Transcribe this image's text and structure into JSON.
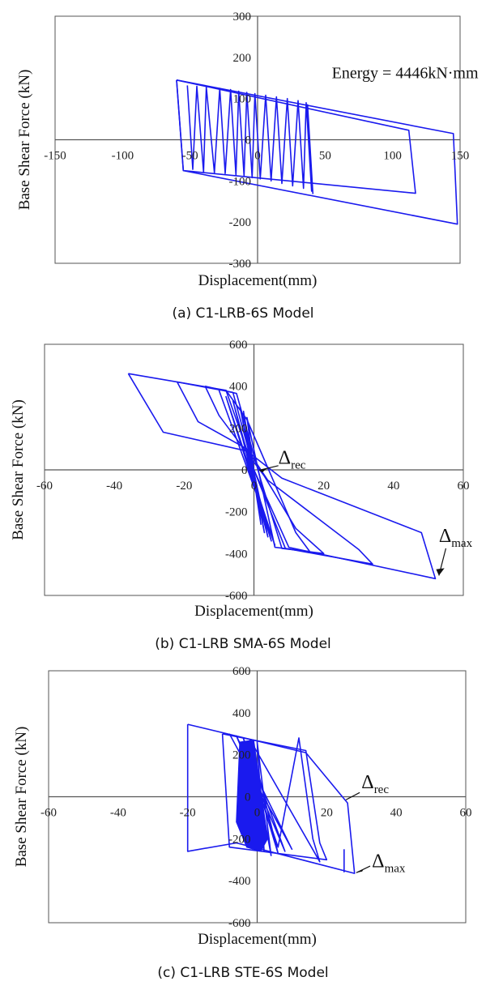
{
  "colors": {
    "series": "#1a1aee",
    "axes": "#555555"
  },
  "chart_data": [
    {
      "type": "line",
      "caption": "(a) C1-LRB-6S Model",
      "xlabel": "Displacement(mm)",
      "ylabel": "Base Shear Force (kN)",
      "xlim": [
        -150,
        150
      ],
      "ylim": [
        -300,
        300
      ],
      "xticks": [
        -150,
        -100,
        -50,
        0,
        50,
        100,
        150
      ],
      "yticks": [
        -300,
        -200,
        -100,
        0,
        100,
        200,
        300
      ],
      "annotations": [
        {
          "text": "Energy = 4446kN·mm",
          "x": 55,
          "y": 150
        }
      ],
      "series": [
        {
          "type": "loop",
          "points": [
            [
              -60,
              145
            ],
            [
              112,
              23
            ],
            [
              117,
              -130
            ],
            [
              -55,
              -75
            ],
            [
              -60,
              145
            ]
          ]
        },
        {
          "type": "loop",
          "points": [
            [
              -60,
              145
            ],
            [
              145,
              15
            ],
            [
              148,
              -205
            ],
            [
              -55,
              -75
            ],
            [
              -60,
              145
            ]
          ]
        },
        {
          "type": "cycles",
          "points": [
            [
              -52,
              132
            ],
            [
              -48,
              -72
            ],
            [
              -45,
              130
            ],
            [
              -40,
              -78
            ],
            [
              -38,
              128
            ],
            [
              -32,
              -80
            ],
            [
              -28,
              125
            ],
            [
              -24,
              -82
            ],
            [
              -20,
              122
            ],
            [
              -16,
              -86
            ],
            [
              -14,
              118
            ],
            [
              -10,
              -88
            ],
            [
              -8,
              115
            ],
            [
              -4,
              -92
            ],
            [
              -2,
              112
            ],
            [
              2,
              -95
            ],
            [
              6,
              108
            ],
            [
              10,
              -100
            ],
            [
              14,
              104
            ],
            [
              18,
              -106
            ],
            [
              22,
              100
            ],
            [
              26,
              -112
            ],
            [
              30,
              95
            ],
            [
              34,
              -118
            ],
            [
              36,
              90
            ],
            [
              40,
              -125
            ],
            [
              37,
              85
            ],
            [
              41,
              -132
            ]
          ]
        }
      ]
    },
    {
      "type": "line",
      "caption": "(b) C1-LRB SMA-6S Model",
      "xlabel": "Displacement(mm)",
      "ylabel": "Base Shear Force (kN)",
      "xlim": [
        -60,
        60
      ],
      "ylim": [
        -600,
        600
      ],
      "xticks": [
        -60,
        -40,
        -20,
        0,
        20,
        40,
        60
      ],
      "yticks": [
        -600,
        -400,
        -200,
        0,
        200,
        400,
        600
      ],
      "annotations": [
        {
          "text": "Δrec",
          "x": 7,
          "y": 30
        },
        {
          "text": "Δmax",
          "x": 53,
          "y": -345
        }
      ],
      "series": [
        {
          "type": "loop",
          "points": [
            [
              -36,
              460
            ],
            [
              -8,
              380
            ],
            [
              0,
              0
            ],
            [
              10,
              -370
            ],
            [
              52,
              -520
            ],
            [
              48,
              -300
            ],
            [
              8,
              -40
            ],
            [
              -2,
              90
            ],
            [
              -26,
              180
            ],
            [
              -36,
              460
            ]
          ]
        },
        {
          "type": "loop",
          "points": [
            [
              -22,
              420
            ],
            [
              -6,
              370
            ],
            [
              0,
              0
            ],
            [
              9,
              -375
            ],
            [
              34,
              -450
            ],
            [
              30,
              -380
            ],
            [
              4,
              -50
            ],
            [
              -2,
              100
            ],
            [
              -16,
              230
            ],
            [
              -22,
              420
            ]
          ]
        },
        {
          "type": "loop",
          "points": [
            [
              -14,
              400
            ],
            [
              -5,
              365
            ],
            [
              2,
              -50
            ],
            [
              8,
              -375
            ],
            [
              20,
              -400
            ],
            [
              12,
              -280
            ],
            [
              3,
              -30
            ],
            [
              -10,
              260
            ],
            [
              -14,
              400
            ]
          ]
        },
        {
          "type": "cycles",
          "points": [
            [
              -10,
              380
            ],
            [
              6,
              -360
            ],
            [
              -8,
              350
            ],
            [
              5,
              -340
            ],
            [
              -6,
              330
            ],
            [
              4,
              -320
            ],
            [
              -4,
              300
            ],
            [
              3,
              -300
            ],
            [
              -3,
              280
            ],
            [
              2,
              -260
            ],
            [
              -2,
              250
            ],
            [
              6,
              -370
            ],
            [
              16,
              -390
            ],
            [
              12,
              -300
            ],
            [
              -2,
              240
            ],
            [
              -8,
              380
            ]
          ]
        }
      ]
    },
    {
      "type": "line",
      "caption": "(c) C1-LRB STE-6S Model",
      "xlabel": "Displacement(mm)",
      "ylabel": "Base Shear Force (kN)",
      "xlim": [
        -60,
        60
      ],
      "ylim": [
        -600,
        600
      ],
      "xticks": [
        -60,
        -40,
        -20,
        0,
        20,
        40,
        60
      ],
      "yticks": [
        -600,
        -400,
        -200,
        0,
        200,
        400,
        600
      ],
      "annotations": [
        {
          "text": "Δrec",
          "x": 30,
          "y": 40
        },
        {
          "text": "Δmax",
          "x": 33,
          "y": -335
        }
      ],
      "series": [
        {
          "type": "loop",
          "points": [
            [
              -20,
              345
            ],
            [
              14,
              210
            ],
            [
              26,
              -30
            ],
            [
              28,
              -365
            ],
            [
              -6,
              -220
            ],
            [
              -20,
              -260
            ],
            [
              -20,
              345
            ]
          ]
        },
        {
          "type": "loop",
          "points": [
            [
              -10,
              300
            ],
            [
              14,
              220
            ],
            [
              18,
              -220
            ],
            [
              20,
              -300
            ],
            [
              -8,
              -240
            ],
            [
              -10,
              300
            ]
          ]
        },
        {
          "type": "cycles",
          "points": [
            [
              -8,
              300
            ],
            [
              10,
              -250
            ],
            [
              -6,
              290
            ],
            [
              8,
              -260
            ],
            [
              -4,
              280
            ],
            [
              6,
              -270
            ],
            [
              -2,
              270
            ],
            [
              4,
              -280
            ],
            [
              0,
              260
            ],
            [
              2,
              -260
            ],
            [
              -4,
              250
            ],
            [
              6,
              -240
            ],
            [
              12,
              280
            ],
            [
              16,
              -200
            ],
            [
              18,
              -310
            ],
            [
              -2,
              270
            ]
          ]
        },
        {
          "type": "fill",
          "points": [
            [
              -5,
              260
            ],
            [
              -1,
              270
            ],
            [
              3,
              -200
            ],
            [
              1,
              -260
            ],
            [
              -3,
              -240
            ],
            [
              -6,
              -120
            ],
            [
              -5,
              260
            ]
          ]
        },
        {
          "type": "line",
          "points": [
            [
              25,
              -250
            ],
            [
              25,
              -360
            ]
          ]
        }
      ]
    }
  ]
}
